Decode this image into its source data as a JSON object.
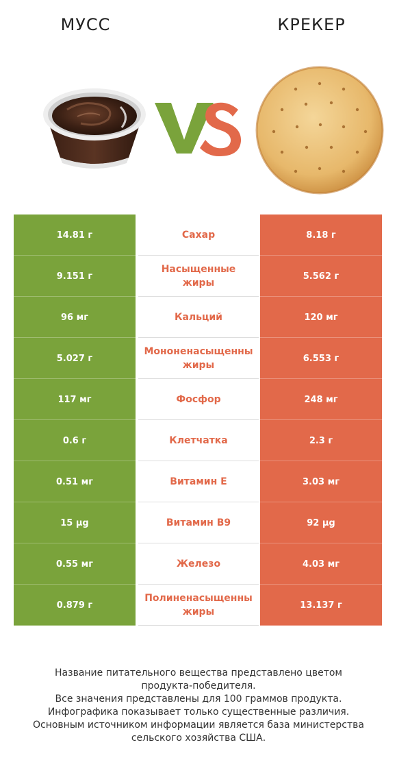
{
  "header": {
    "left_product": "МУСС",
    "right_product": "КРЕКЕР",
    "vs_text": "VS"
  },
  "colors": {
    "winner_left": "#7aa33b",
    "winner_right": "#e2694a",
    "vs_v": "#7aa33b",
    "vs_s": "#e2694a"
  },
  "chart_data": {
    "type": "table",
    "columns": [
      "МУСС",
      "",
      "КРЕКЕР"
    ],
    "rows": [
      {
        "nutrient_lines": [
          "Сахар"
        ],
        "left": "14.81 г",
        "right": "8.18 г",
        "winner": "right"
      },
      {
        "nutrient_lines": [
          "Насыщенные",
          "жиры"
        ],
        "left": "9.151 г",
        "right": "5.562 г",
        "winner": "right"
      },
      {
        "nutrient_lines": [
          "Кальций"
        ],
        "left": "96 мг",
        "right": "120 мг",
        "winner": "right"
      },
      {
        "nutrient_lines": [
          "Мононенасыщенны",
          "жиры"
        ],
        "left": "5.027 г",
        "right": "6.553 г",
        "winner": "right"
      },
      {
        "nutrient_lines": [
          "Фосфор"
        ],
        "left": "117 мг",
        "right": "248 мг",
        "winner": "right"
      },
      {
        "nutrient_lines": [
          "Клетчатка"
        ],
        "left": "0.6 г",
        "right": "2.3 г",
        "winner": "right"
      },
      {
        "nutrient_lines": [
          "Витамин E"
        ],
        "left": "0.51 мг",
        "right": "3.03 мг",
        "winner": "right"
      },
      {
        "nutrient_lines": [
          "Витамин B9"
        ],
        "left": "15 µg",
        "right": "92 µg",
        "winner": "right"
      },
      {
        "nutrient_lines": [
          "Железо"
        ],
        "left": "0.55 мг",
        "right": "4.03 мг",
        "winner": "right"
      },
      {
        "nutrient_lines": [
          "Полиненасыщенны",
          "жиры"
        ],
        "left": "0.879 г",
        "right": "13.137 г",
        "winner": "right"
      }
    ]
  },
  "footnote": [
    "Название питательного вещества представлено цветом",
    "продукта-победителя.",
    "Все значения представлены для 100 граммов продукта.",
    "Инфографика показывает только существенные различия.",
    "Основным источником информации является база министерства",
    "сельского хозяйства США."
  ]
}
